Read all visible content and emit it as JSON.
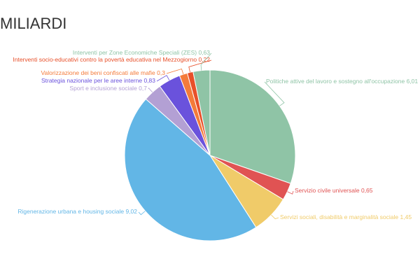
{
  "chart_data": {
    "type": "pie",
    "title": "MILIARDI",
    "categories": [
      "Politiche attive del lavoro e sostegno all'occupazione",
      "Servizio civile universale",
      "Servizi sociali, disabilità e marginalità sociale",
      "Rigenerazione urbana e housing sociale",
      "Sport e inclusione sociale",
      "Strategia nazionale per le aree interne",
      "Valorizzazione dei beni confiscati alle mafie",
      "Interventi socio-educativi contro la povertà educativa nel Mezzogiorno",
      "Interventi per Zone Economiche Speciali (ZES)"
    ],
    "values": [
      6.01,
      0.65,
      1.45,
      9.02,
      0.7,
      0.83,
      0.3,
      0.22,
      0.63
    ],
    "value_labels": [
      "6,01",
      "0,65",
      "1,45",
      "9,02",
      "0,7",
      "0,83",
      "0,3",
      "0,22",
      "0,63"
    ],
    "colors": [
      "#8fc4a6",
      "#e05353",
      "#f0cb69",
      "#62b6e6",
      "#b3a0d4",
      "#6a52dc",
      "#f47b3a",
      "#e8502a",
      "#8fc4a6"
    ]
  }
}
